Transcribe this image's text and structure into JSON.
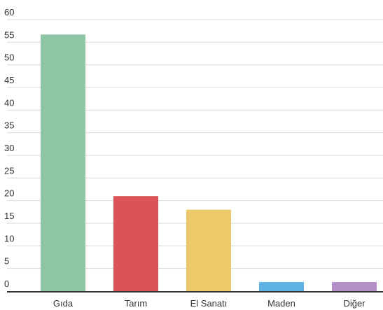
{
  "chart_data": {
    "type": "bar",
    "title": "",
    "xlabel": "",
    "ylabel": "",
    "categories": [
      "Gıda",
      "Tarım",
      "El Sanatı",
      "Maden",
      "Diğer"
    ],
    "values": [
      56.7,
      21,
      18,
      2,
      2
    ],
    "colors": [
      "#8dc6a4",
      "#da5457",
      "#ecca6a",
      "#5cb3e4",
      "#b28fc7"
    ],
    "ylim": [
      0,
      60
    ],
    "yticks": [
      0,
      5,
      10,
      15,
      20,
      25,
      30,
      35,
      40,
      45,
      50,
      55,
      60
    ],
    "grid": true,
    "legend": "none"
  }
}
